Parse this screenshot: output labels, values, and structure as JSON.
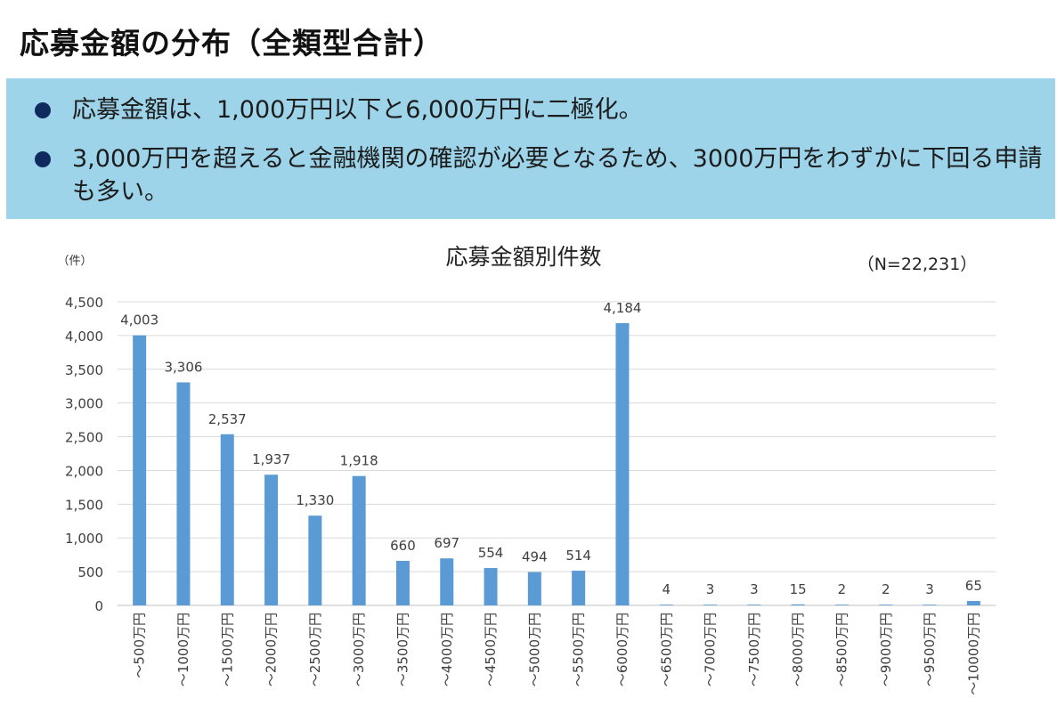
{
  "header": {
    "title": "応募金額の分布（全類型合計）"
  },
  "summary": {
    "bullets": [
      "応募金額は、1,000万円以下と6,000万円に二極化。",
      "3,000万円を超えると金融機関の確認が必要となるため、3000万円をわずかに下回る申請も多い。"
    ]
  },
  "chart_data": {
    "type": "bar",
    "title": "応募金額別件数",
    "unit_label": "（件）",
    "note": "（N=22,231）",
    "categories": [
      "～500万円",
      "～1000万円",
      "～1500万円",
      "～2000万円",
      "～2500万円",
      "～3000万円",
      "～3500万円",
      "～4000万円",
      "～4500万円",
      "～5000万円",
      "～5500万円",
      "～6000万円",
      "～6500万円",
      "～7000万円",
      "～7500万円",
      "～8000万円",
      "～8500万円",
      "～9000万円",
      "～9500万円",
      "～10000万円"
    ],
    "values": [
      4003,
      3306,
      2537,
      1937,
      1330,
      1918,
      660,
      697,
      554,
      494,
      514,
      4184,
      4,
      3,
      3,
      15,
      2,
      2,
      3,
      65
    ],
    "value_labels": [
      "4,003",
      "3,306",
      "2,537",
      "1,937",
      "1,330",
      "1,918",
      "660",
      "697",
      "554",
      "494",
      "514",
      "4,184",
      "4",
      "3",
      "3",
      "15",
      "2",
      "2",
      "3",
      "65"
    ],
    "yticks": [
      "0",
      "500",
      "1,000",
      "1,500",
      "2,000",
      "2,500",
      "3,000",
      "3,500",
      "4,000",
      "4,500"
    ],
    "ylim": [
      0,
      4500
    ],
    "grid": true,
    "bar_color": "#5b9bd5",
    "grid_color": "#d9d9d9"
  }
}
